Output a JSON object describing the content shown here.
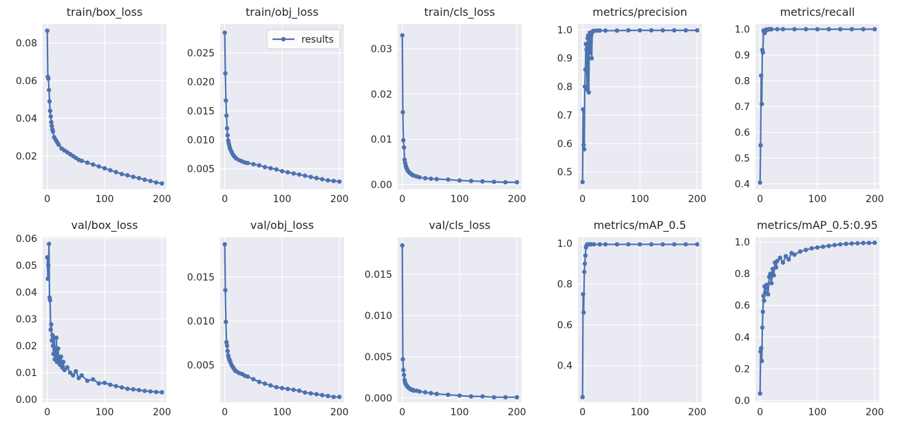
{
  "figure": {
    "background": "#ffffff",
    "plot_bg": "#eaeaf2",
    "grid_color": "#ffffff",
    "series_color": "#4c72b0"
  },
  "legend": {
    "label": "results"
  },
  "chart_data": [
    {
      "type": "line",
      "title": "train/box_loss",
      "xlim": [
        -8,
        208
      ],
      "ylim": [
        0.0025,
        0.09
      ],
      "xticks": [
        0,
        100,
        200
      ],
      "xtick_labels": [
        "0",
        "100",
        "200"
      ],
      "yticks": [
        0.02,
        0.04,
        0.06,
        0.08
      ],
      "ytick_labels": [
        "0.02",
        "0.04",
        "0.06",
        "0.08"
      ],
      "x": [
        0,
        1,
        2,
        3,
        4,
        5,
        6,
        7,
        8,
        9,
        10,
        12,
        14,
        16,
        18,
        20,
        25,
        30,
        35,
        40,
        45,
        50,
        55,
        60,
        70,
        80,
        90,
        100,
        110,
        120,
        130,
        140,
        150,
        160,
        170,
        180,
        190,
        200
      ],
      "y": [
        0.0865,
        0.062,
        0.061,
        0.055,
        0.049,
        0.044,
        0.041,
        0.038,
        0.036,
        0.034,
        0.033,
        0.03,
        0.029,
        0.028,
        0.027,
        0.026,
        0.024,
        0.023,
        0.022,
        0.021,
        0.02,
        0.019,
        0.018,
        0.0175,
        0.0165,
        0.0155,
        0.0145,
        0.0135,
        0.0125,
        0.0115,
        0.0105,
        0.0098,
        0.009,
        0.0083,
        0.0075,
        0.0068,
        0.006,
        0.0055
      ]
    },
    {
      "type": "line",
      "title": "train/obj_loss",
      "xlim": [
        -8,
        208
      ],
      "ylim": [
        0.0015,
        0.03
      ],
      "xticks": [
        0,
        100,
        200
      ],
      "xtick_labels": [
        "0",
        "100",
        "200"
      ],
      "yticks": [
        0.005,
        0.01,
        0.015,
        0.02,
        0.025
      ],
      "ytick_labels": [
        "0.005",
        "0.010",
        "0.015",
        "0.020",
        "0.025"
      ],
      "legend": true,
      "x": [
        0,
        1,
        2,
        3,
        4,
        5,
        6,
        7,
        8,
        9,
        10,
        12,
        14,
        16,
        18,
        20,
        25,
        30,
        35,
        40,
        50,
        60,
        70,
        80,
        90,
        100,
        110,
        120,
        130,
        140,
        150,
        160,
        170,
        180,
        190,
        200
      ],
      "y": [
        0.0285,
        0.0215,
        0.0168,
        0.0142,
        0.012,
        0.0108,
        0.0099,
        0.0094,
        0.009,
        0.0086,
        0.0083,
        0.0079,
        0.0075,
        0.0072,
        0.007,
        0.0068,
        0.0065,
        0.0063,
        0.0061,
        0.006,
        0.0058,
        0.0056,
        0.0053,
        0.0051,
        0.0049,
        0.0046,
        0.0044,
        0.0042,
        0.004,
        0.0038,
        0.0036,
        0.0034,
        0.0032,
        0.003,
        0.0029,
        0.0028
      ]
    },
    {
      "type": "line",
      "title": "train/cls_loss",
      "xlim": [
        -8,
        208
      ],
      "ylim": [
        -0.001,
        0.0355
      ],
      "xticks": [
        0,
        100,
        200
      ],
      "xtick_labels": [
        "0",
        "100",
        "200"
      ],
      "yticks": [
        0.0,
        0.01,
        0.02,
        0.03
      ],
      "ytick_labels": [
        "0.00",
        "0.01",
        "0.02",
        "0.03"
      ],
      "x": [
        0,
        1,
        2,
        3,
        4,
        5,
        6,
        7,
        8,
        9,
        10,
        12,
        14,
        16,
        18,
        20,
        25,
        30,
        40,
        50,
        60,
        80,
        100,
        120,
        140,
        160,
        180,
        200
      ],
      "y": [
        0.033,
        0.016,
        0.0098,
        0.0082,
        0.0055,
        0.0048,
        0.0042,
        0.0038,
        0.0035,
        0.0032,
        0.003,
        0.0027,
        0.0025,
        0.0023,
        0.0021,
        0.002,
        0.0018,
        0.0016,
        0.0014,
        0.0013,
        0.0012,
        0.0011,
        0.0009,
        0.0008,
        0.0007,
        0.0006,
        0.0005,
        0.0005
      ]
    },
    {
      "type": "line",
      "title": "metrics/precision",
      "xlim": [
        -8,
        208
      ],
      "ylim": [
        0.44,
        1.02
      ],
      "xticks": [
        0,
        100,
        200
      ],
      "xtick_labels": [
        "0",
        "100",
        "200"
      ],
      "yticks": [
        0.5,
        0.6,
        0.7,
        0.8,
        0.9,
        1.0
      ],
      "ytick_labels": [
        "0.5",
        "0.6",
        "0.7",
        "0.8",
        "0.9",
        "1.0"
      ],
      "x": [
        0,
        1,
        2,
        3,
        4,
        5,
        6,
        7,
        8,
        9,
        10,
        11,
        12,
        13,
        14,
        15,
        16,
        17,
        18,
        19,
        20,
        25,
        30,
        40,
        60,
        80,
        100,
        120,
        140,
        160,
        180,
        200
      ],
      "y": [
        0.465,
        0.72,
        0.595,
        0.58,
        0.8,
        0.86,
        0.95,
        0.93,
        0.79,
        0.97,
        0.98,
        0.78,
        0.975,
        0.99,
        0.92,
        0.98,
        0.9,
        0.99,
        0.995,
        0.996,
        0.996,
        0.997,
        0.997,
        0.997,
        0.997,
        0.998,
        0.998,
        0.998,
        0.998,
        0.998,
        0.998,
        0.998
      ]
    },
    {
      "type": "line",
      "title": "metrics/recall",
      "xlim": [
        -8,
        208
      ],
      "ylim": [
        0.38,
        1.02
      ],
      "xticks": [
        0,
        100,
        200
      ],
      "xtick_labels": [
        "0",
        "100",
        "200"
      ],
      "yticks": [
        0.4,
        0.5,
        0.6,
        0.7,
        0.8,
        0.9,
        1.0
      ],
      "ytick_labels": [
        "0.4",
        "0.5",
        "0.6",
        "0.7",
        "0.8",
        "0.9",
        "1.0"
      ],
      "x": [
        0,
        1,
        2,
        3,
        4,
        5,
        6,
        7,
        8,
        9,
        10,
        12,
        14,
        16,
        18,
        20,
        30,
        40,
        60,
        80,
        100,
        120,
        140,
        160,
        180,
        200
      ],
      "y": [
        0.405,
        0.55,
        0.82,
        0.71,
        0.92,
        0.91,
        0.995,
        0.99,
        0.985,
        0.99,
        0.998,
        0.999,
        0.999,
        1.0,
        1.0,
        1.0,
        1.0,
        1.0,
        1.0,
        1.0,
        1.0,
        1.0,
        1.0,
        1.0,
        1.0,
        1.0
      ]
    },
    {
      "type": "line",
      "title": "val/box_loss",
      "xlim": [
        -8,
        208
      ],
      "ylim": [
        -0.001,
        0.0605
      ],
      "xticks": [
        0,
        100,
        200
      ],
      "xtick_labels": [
        "0",
        "100",
        "200"
      ],
      "yticks": [
        0.0,
        0.01,
        0.02,
        0.03,
        0.04,
        0.05,
        0.06
      ],
      "ytick_labels": [
        "0.00",
        "0.01",
        "0.02",
        "0.03",
        "0.04",
        "0.05",
        "0.06"
      ],
      "x": [
        0,
        1,
        2,
        3,
        4,
        5,
        6,
        7,
        8,
        9,
        10,
        11,
        12,
        13,
        14,
        15,
        16,
        17,
        18,
        19,
        20,
        22,
        24,
        26,
        28,
        30,
        35,
        40,
        45,
        50,
        55,
        60,
        70,
        80,
        90,
        100,
        110,
        120,
        130,
        140,
        150,
        160,
        170,
        180,
        190,
        200
      ],
      "y": [
        0.053,
        0.045,
        0.05,
        0.058,
        0.038,
        0.037,
        0.026,
        0.028,
        0.022,
        0.024,
        0.02,
        0.017,
        0.023,
        0.015,
        0.019,
        0.017,
        0.023,
        0.014,
        0.016,
        0.019,
        0.015,
        0.013,
        0.016,
        0.012,
        0.014,
        0.011,
        0.012,
        0.01,
        0.009,
        0.0105,
        0.008,
        0.009,
        0.007,
        0.0075,
        0.006,
        0.0062,
        0.0055,
        0.005,
        0.0045,
        0.004,
        0.0038,
        0.0035,
        0.0032,
        0.003,
        0.0028,
        0.0027
      ]
    },
    {
      "type": "line",
      "title": "val/obj_loss",
      "xlim": [
        -8,
        208
      ],
      "ylim": [
        0.0008,
        0.0195
      ],
      "xticks": [
        0,
        100,
        200
      ],
      "xtick_labels": [
        "0",
        "100",
        "200"
      ],
      "yticks": [
        0.005,
        0.01,
        0.015
      ],
      "ytick_labels": [
        "0.005",
        "0.010",
        "0.015"
      ],
      "x": [
        0,
        1,
        2,
        3,
        4,
        5,
        6,
        7,
        8,
        9,
        10,
        12,
        14,
        16,
        18,
        20,
        25,
        30,
        35,
        40,
        50,
        60,
        70,
        80,
        90,
        100,
        110,
        120,
        130,
        140,
        150,
        160,
        170,
        180,
        190,
        200
      ],
      "y": [
        0.0187,
        0.0135,
        0.0099,
        0.0076,
        0.0072,
        0.0066,
        0.0061,
        0.0058,
        0.0056,
        0.0055,
        0.0053,
        0.005,
        0.0048,
        0.0046,
        0.0044,
        0.0043,
        0.0041,
        0.004,
        0.0038,
        0.0037,
        0.0034,
        0.0031,
        0.0029,
        0.0027,
        0.0025,
        0.0024,
        0.0023,
        0.0022,
        0.0021,
        0.0019,
        0.0018,
        0.0017,
        0.0016,
        0.0015,
        0.0014,
        0.0014
      ]
    },
    {
      "type": "line",
      "title": "val/cls_loss",
      "xlim": [
        -8,
        208
      ],
      "ylim": [
        -0.0005,
        0.0195
      ],
      "xticks": [
        0,
        100,
        200
      ],
      "xtick_labels": [
        "0",
        "100",
        "200"
      ],
      "yticks": [
        0.0,
        0.005,
        0.01,
        0.015
      ],
      "ytick_labels": [
        "0.000",
        "0.005",
        "0.010",
        "0.015"
      ],
      "x": [
        0,
        1,
        2,
        3,
        4,
        5,
        6,
        7,
        8,
        9,
        10,
        12,
        14,
        16,
        18,
        20,
        25,
        30,
        40,
        50,
        60,
        80,
        100,
        120,
        140,
        160,
        180,
        200
      ],
      "y": [
        0.0185,
        0.0047,
        0.0034,
        0.0028,
        0.0022,
        0.0019,
        0.0017,
        0.0016,
        0.0015,
        0.0014,
        0.0013,
        0.0012,
        0.0011,
        0.001,
        0.001,
        0.0009,
        0.0009,
        0.0008,
        0.0007,
        0.0006,
        0.0005,
        0.0004,
        0.0003,
        0.0002,
        0.0002,
        0.0001,
        0.0001,
        0.0001
      ]
    },
    {
      "type": "line",
      "title": "metrics/mAP_0.5",
      "xlim": [
        -8,
        208
      ],
      "ylim": [
        0.22,
        1.03
      ],
      "xticks": [
        0,
        100,
        200
      ],
      "xtick_labels": [
        "0",
        "100",
        "200"
      ],
      "yticks": [
        0.4,
        0.6,
        0.8,
        1.0
      ],
      "ytick_labels": [
        "0.4",
        "0.6",
        "0.8",
        "1.0"
      ],
      "x": [
        0,
        1,
        2,
        3,
        4,
        5,
        6,
        7,
        8,
        10,
        12,
        15,
        20,
        30,
        40,
        60,
        80,
        100,
        120,
        140,
        160,
        180,
        200
      ],
      "y": [
        0.245,
        0.75,
        0.66,
        0.86,
        0.9,
        0.94,
        0.98,
        0.99,
        0.994,
        0.995,
        0.995,
        0.995,
        0.995,
        0.995,
        0.995,
        0.995,
        0.995,
        0.995,
        0.995,
        0.995,
        0.995,
        0.995,
        0.995
      ]
    },
    {
      "type": "line",
      "title": "metrics/mAP_0.5:0.95",
      "xlim": [
        -8,
        208
      ],
      "ylim": [
        -0.01,
        1.03
      ],
      "xticks": [
        0,
        100,
        200
      ],
      "xtick_labels": [
        "0",
        "100",
        "200"
      ],
      "yticks": [
        0.0,
        0.2,
        0.4,
        0.6,
        0.8,
        1.0
      ],
      "ytick_labels": [
        "0.0",
        "0.2",
        "0.4",
        "0.6",
        "0.8",
        "1.0"
      ],
      "x": [
        0,
        1,
        2,
        3,
        4,
        5,
        6,
        7,
        8,
        9,
        10,
        12,
        14,
        16,
        18,
        20,
        22,
        24,
        26,
        28,
        30,
        35,
        40,
        45,
        50,
        55,
        60,
        70,
        80,
        90,
        100,
        110,
        120,
        130,
        140,
        150,
        160,
        170,
        180,
        190,
        200
      ],
      "y": [
        0.045,
        0.31,
        0.33,
        0.25,
        0.46,
        0.56,
        0.66,
        0.63,
        0.72,
        0.68,
        0.71,
        0.73,
        0.67,
        0.78,
        0.8,
        0.74,
        0.83,
        0.79,
        0.87,
        0.84,
        0.88,
        0.9,
        0.87,
        0.91,
        0.89,
        0.93,
        0.92,
        0.94,
        0.95,
        0.96,
        0.965,
        0.97,
        0.975,
        0.98,
        0.985,
        0.988,
        0.99,
        0.992,
        0.993,
        0.994,
        0.995
      ]
    }
  ]
}
